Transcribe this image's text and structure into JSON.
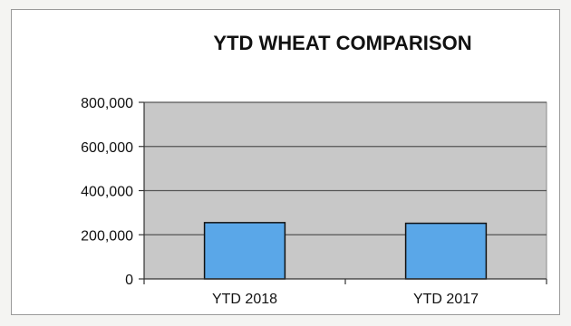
{
  "chart_data": {
    "type": "bar",
    "title": "YTD WHEAT COMPARISON",
    "categories": [
      "YTD 2018",
      "YTD 2017"
    ],
    "values": [
      255000,
      252000
    ],
    "ylim": [
      0,
      800000
    ],
    "yticks": [
      0,
      200000,
      400000,
      600000,
      800000
    ],
    "ytick_labels": [
      "0",
      "200,000",
      "400,000",
      "600,000",
      "800,000"
    ],
    "grid": true,
    "legend": "none",
    "colors": {
      "bar": "#5aa7e8",
      "bar_edge": "#111111",
      "plot_bg": "#c8c8c8",
      "grid": "#555555"
    }
  }
}
